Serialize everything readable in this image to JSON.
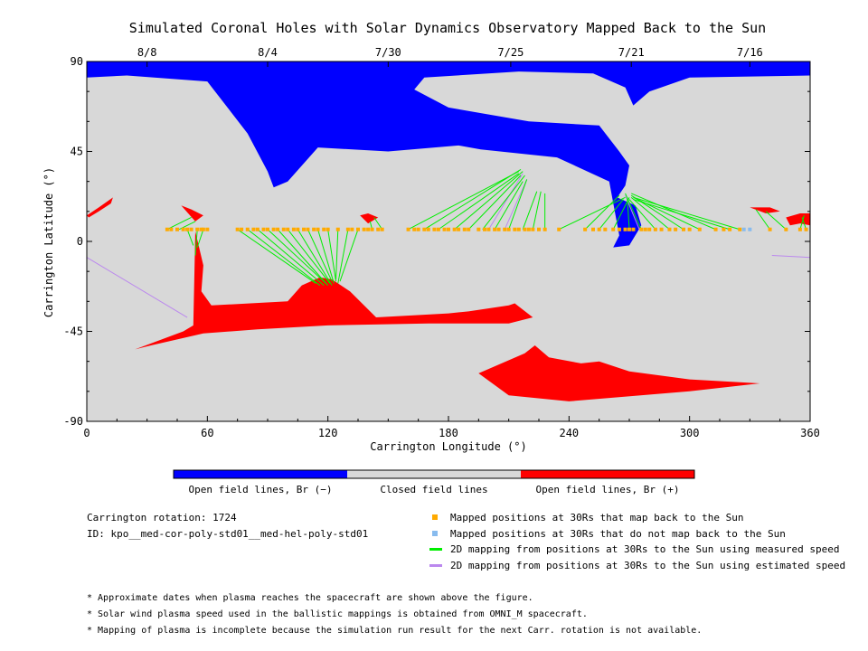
{
  "chart_data": {
    "type": "scatter",
    "title": "Simulated Coronal Holes with Solar Dynamics Observatory Mapped Back to the Sun",
    "xlabel": "Carrington Longitude (°)",
    "ylabel": "Carrington Latitude (°)",
    "xlim": [
      0,
      360
    ],
    "ylim": [
      -90,
      90
    ],
    "x_ticks": [
      0,
      60,
      120,
      180,
      240,
      300,
      360
    ],
    "y_ticks": [
      -90,
      -45,
      0,
      45,
      90
    ],
    "top_axis": {
      "labels": [
        "8/8",
        "8/4",
        "7/30",
        "7/25",
        "7/21",
        "7/16"
      ],
      "longitudes": [
        30,
        90,
        150,
        211,
        271,
        330
      ]
    },
    "colors": {
      "open_negative": "#0000ff",
      "closed": "#d8d8d8",
      "open_positive": "#ff0000",
      "mapped_back": "#ffaa00",
      "not_mapped": "#88bbee",
      "measured_line": "#00ee00",
      "estimated_line": "#bb88ee"
    },
    "colorbar": [
      {
        "label": "Open field lines, Br (−)",
        "color": "#0000ff"
      },
      {
        "label": "Closed field lines",
        "color": "#d8d8d8"
      },
      {
        "label": "Open field lines, Br (+)",
        "color": "#ff0000"
      }
    ],
    "regions": {
      "negative_hole": [
        [
          0,
          90
        ],
        [
          360,
          90
        ],
        [
          360,
          83
        ],
        [
          300,
          82
        ],
        [
          280,
          75
        ],
        [
          272,
          68
        ],
        [
          268,
          77
        ],
        [
          252,
          84
        ],
        [
          215,
          85
        ],
        [
          168,
          82
        ],
        [
          163,
          76
        ],
        [
          180,
          67
        ],
        [
          220,
          60
        ],
        [
          255,
          58
        ],
        [
          265,
          45
        ],
        [
          270,
          38
        ],
        [
          268,
          28
        ],
        [
          264,
          22
        ],
        [
          273,
          18
        ],
        [
          276,
          8
        ],
        [
          270,
          -2
        ],
        [
          262,
          -3
        ],
        [
          265,
          3
        ],
        [
          260,
          30
        ],
        [
          234,
          42
        ],
        [
          196,
          46
        ],
        [
          185,
          48
        ],
        [
          150,
          45
        ],
        [
          115,
          47
        ],
        [
          100,
          30
        ],
        [
          93,
          27
        ],
        [
          90,
          35
        ],
        [
          80,
          54
        ],
        [
          60,
          80
        ],
        [
          20,
          83
        ],
        [
          0,
          82
        ]
      ],
      "positive_holes": [
        [
          [
            24,
            -54
          ],
          [
            48,
            -45
          ],
          [
            53,
            -42
          ],
          [
            54,
            5
          ],
          [
            58,
            -12
          ],
          [
            57,
            -25
          ],
          [
            62,
            -32
          ],
          [
            100,
            -30
          ],
          [
            107,
            -22
          ],
          [
            116,
            -18
          ],
          [
            122,
            -19
          ],
          [
            131,
            -25
          ],
          [
            144,
            -38
          ],
          [
            180,
            -36
          ],
          [
            190,
            -35
          ],
          [
            210,
            -32
          ],
          [
            213,
            -31
          ],
          [
            222,
            -38
          ],
          [
            210,
            -41
          ],
          [
            170,
            -41
          ],
          [
            120,
            -42
          ],
          [
            85,
            -44
          ],
          [
            58,
            -46
          ],
          [
            32,
            -52
          ]
        ],
        [
          [
            195,
            -66
          ],
          [
            218,
            -56
          ],
          [
            223,
            -52
          ],
          [
            230,
            -58
          ],
          [
            246,
            -61
          ],
          [
            255,
            -60
          ],
          [
            270,
            -65
          ],
          [
            300,
            -69
          ],
          [
            335,
            -71
          ],
          [
            300,
            -75
          ],
          [
            240,
            -80
          ],
          [
            210,
            -77
          ]
        ],
        [
          [
            0,
            13
          ],
          [
            6,
            17
          ],
          [
            13,
            22
          ],
          [
            12,
            19
          ],
          [
            6,
            15
          ],
          [
            1,
            12
          ]
        ],
        [
          [
            47,
            18
          ],
          [
            54,
            10
          ],
          [
            58,
            13
          ],
          [
            52,
            16
          ]
        ],
        [
          [
            136,
            13
          ],
          [
            140,
            14
          ],
          [
            145,
            12
          ],
          [
            140,
            9
          ]
        ],
        [
          [
            330,
            17
          ],
          [
            340,
            17
          ],
          [
            345,
            15
          ],
          [
            338,
            14
          ]
        ],
        [
          [
            348,
            12
          ],
          [
            355,
            14
          ],
          [
            360,
            14
          ],
          [
            360,
            8
          ],
          [
            355,
            9
          ],
          [
            350,
            8
          ]
        ]
      ]
    },
    "mapping": {
      "measured": [
        {
          "from": [
            40,
            6
          ],
          "to": [
            52,
            12
          ]
        },
        {
          "from": [
            46,
            6
          ],
          "to": [
            54,
            10
          ]
        },
        {
          "from": [
            50,
            6
          ],
          "to": [
            53,
            -2
          ]
        },
        {
          "from": [
            55,
            6
          ],
          "to": [
            54,
            -7
          ]
        },
        {
          "from": [
            58,
            6
          ],
          "to": [
            55,
            -3
          ]
        },
        {
          "from": [
            75,
            6
          ],
          "to": [
            114,
            -21
          ]
        },
        {
          "from": [
            80,
            6
          ],
          "to": [
            116,
            -22
          ]
        },
        {
          "from": [
            85,
            6
          ],
          "to": [
            118,
            -22
          ]
        },
        {
          "from": [
            90,
            6
          ],
          "to": [
            119,
            -21
          ]
        },
        {
          "from": [
            95,
            6
          ],
          "to": [
            120,
            -22
          ]
        },
        {
          "from": [
            100,
            6
          ],
          "to": [
            121,
            -21
          ]
        },
        {
          "from": [
            105,
            6
          ],
          "to": [
            122,
            -22
          ]
        },
        {
          "from": [
            110,
            6
          ],
          "to": [
            122,
            -20
          ]
        },
        {
          "from": [
            115,
            6
          ],
          "to": [
            123,
            -21
          ]
        },
        {
          "from": [
            120,
            6
          ],
          "to": [
            124,
            -20
          ]
        },
        {
          "from": [
            125,
            6
          ],
          "to": [
            124,
            -19
          ]
        },
        {
          "from": [
            130,
            6
          ],
          "to": [
            125,
            -21
          ]
        },
        {
          "from": [
            135,
            6
          ],
          "to": [
            126,
            -20
          ]
        },
        {
          "from": [
            142,
            6
          ],
          "to": [
            141,
            10
          ]
        },
        {
          "from": [
            147,
            6
          ],
          "to": [
            143,
            12
          ]
        },
        {
          "from": [
            160,
            6
          ],
          "to": [
            215,
            35
          ]
        },
        {
          "from": [
            168,
            6
          ],
          "to": [
            216,
            36
          ]
        },
        {
          "from": [
            175,
            6
          ],
          "to": [
            215,
            34
          ]
        },
        {
          "from": [
            183,
            6
          ],
          "to": [
            217,
            35
          ]
        },
        {
          "from": [
            190,
            6
          ],
          "to": [
            216,
            33
          ]
        },
        {
          "from": [
            197,
            6
          ],
          "to": [
            218,
            33
          ]
        },
        {
          "from": [
            203,
            6
          ],
          "to": [
            217,
            30
          ]
        },
        {
          "from": [
            210,
            6
          ],
          "to": [
            219,
            31
          ]
        },
        {
          "from": [
            217,
            6
          ],
          "to": [
            224,
            25
          ]
        },
        {
          "from": [
            222,
            6
          ],
          "to": [
            226,
            25
          ]
        },
        {
          "from": [
            228,
            6
          ],
          "to": [
            228,
            24
          ]
        },
        {
          "from": [
            235,
            6
          ],
          "to": [
            268,
            22
          ]
        },
        {
          "from": [
            248,
            6
          ],
          "to": [
            265,
            23
          ]
        },
        {
          "from": [
            255,
            6
          ],
          "to": [
            267,
            21
          ]
        },
        {
          "from": [
            262,
            6
          ],
          "to": [
            270,
            22
          ]
        },
        {
          "from": [
            270,
            6
          ],
          "to": [
            269,
            22
          ]
        },
        {
          "from": [
            276,
            6
          ],
          "to": [
            268,
            24
          ]
        },
        {
          "from": [
            283,
            6
          ],
          "to": [
            270,
            21
          ]
        },
        {
          "from": [
            290,
            6
          ],
          "to": [
            271,
            22
          ]
        },
        {
          "from": [
            297,
            6
          ],
          "to": [
            271,
            23
          ]
        },
        {
          "from": [
            305,
            6
          ],
          "to": [
            272,
            22
          ]
        },
        {
          "from": [
            313,
            6
          ],
          "to": [
            271,
            24
          ]
        },
        {
          "from": [
            320,
            6
          ],
          "to": [
            272,
            21
          ]
        },
        {
          "from": [
            325,
            6
          ],
          "to": [
            272,
            22
          ]
        },
        {
          "from": [
            340,
            6
          ],
          "to": [
            333,
            16
          ]
        },
        {
          "from": [
            348,
            6
          ],
          "to": [
            338,
            15
          ]
        },
        {
          "from": [
            355,
            6
          ],
          "to": [
            357,
            13
          ]
        },
        {
          "from": [
            358,
            6
          ],
          "to": [
            356,
            12
          ]
        }
      ],
      "estimated": [
        {
          "from": [
            200,
            6
          ],
          "to": [
            217,
            34
          ]
        },
        {
          "from": [
            208,
            6
          ],
          "to": [
            219,
            31
          ]
        },
        {
          "from": [
            275,
            6
          ],
          "to": [
            268,
            23
          ]
        }
      ],
      "estimated_wrap": [
        {
          "from": [
            0,
            -8
          ],
          "to": [
            50,
            -38
          ]
        },
        {
          "from": [
            341,
            -7
          ],
          "to": [
            360,
            -8
          ]
        }
      ],
      "points_mapped": [
        40,
        42,
        45,
        48,
        50,
        52,
        55,
        57,
        58,
        60,
        75,
        77,
        80,
        83,
        85,
        88,
        90,
        93,
        95,
        98,
        100,
        103,
        105,
        108,
        110,
        113,
        115,
        118,
        120,
        125,
        130,
        132,
        135,
        138,
        140,
        142,
        145,
        147,
        160,
        163,
        165,
        168,
        170,
        173,
        175,
        178,
        180,
        183,
        185,
        188,
        190,
        195,
        198,
        200,
        203,
        205,
        208,
        210,
        213,
        215,
        218,
        220,
        222,
        225,
        228,
        235,
        248,
        252,
        255,
        258,
        262,
        265,
        268,
        270,
        272,
        276,
        278,
        280,
        283,
        286,
        290,
        293,
        297,
        300,
        305,
        313,
        317,
        320,
        325,
        340,
        348,
        355,
        358
      ],
      "points_unmapped": [
        327,
        330
      ]
    }
  },
  "colorbar_labels": {
    "negative": "Open field lines, Br (−)",
    "closed": "Closed field lines",
    "positive": "Open field lines, Br (+)"
  },
  "info": {
    "rotation": "Carrington rotation: 1724",
    "id": "ID: kpo__med-cor-poly-std01__med-hel-poly-std01"
  },
  "legend": [
    {
      "label": "Mapped positions at 30Rs that map back to the Sun",
      "color": "#ffaa00",
      "kind": "square"
    },
    {
      "label": "Mapped positions at 30Rs that do not map back to the Sun",
      "color": "#88bbee",
      "kind": "square"
    },
    {
      "label": "2D mapping from positions at 30Rs to the Sun using measured speed",
      "color": "#00ee00",
      "kind": "line"
    },
    {
      "label": "2D mapping from positions at 30Rs to the Sun using estimated speed",
      "color": "#bb88ee",
      "kind": "line"
    }
  ],
  "notes": [
    "* Approximate dates when plasma reaches the spacecraft are shown above the figure.",
    "* Solar wind plasma speed used in the ballistic mappings is obtained from OMNI_M spacecraft.",
    "* Mapping of plasma is incomplete because the simulation run result for the next Carr. rotation is not available."
  ]
}
